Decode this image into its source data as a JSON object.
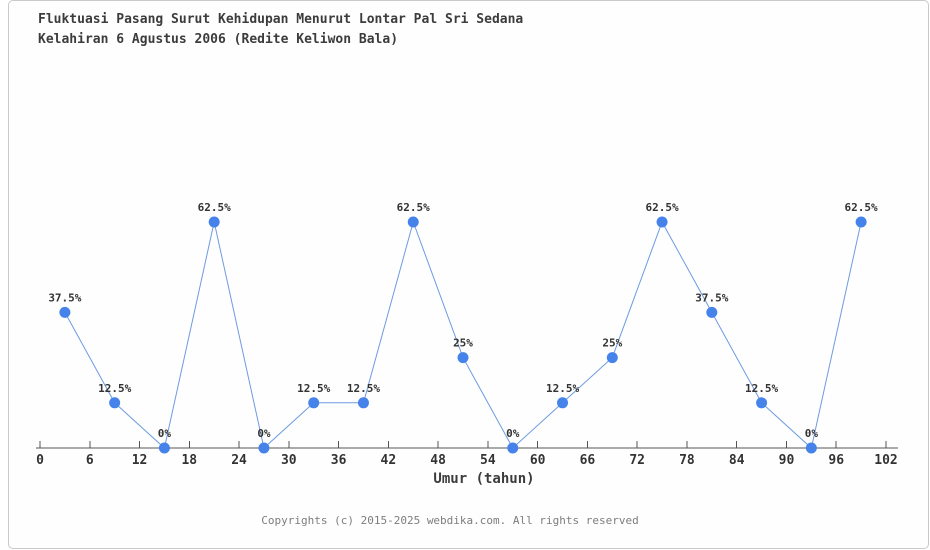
{
  "page": {
    "background": "#ffffff",
    "frame_border_color": "#c9c9c9"
  },
  "chart_data": {
    "type": "line",
    "title": "Fluktuasi Pasang Surut Kehidupan Menurut Lontar Pal Sri Sedana",
    "subtitle": "Kelahiran 6 Agustus 2006 (Redite Keliwon Bala)",
    "xlabel": "Umur (tahun)",
    "ylabel": "",
    "x": [
      3,
      9,
      15,
      21,
      27,
      33,
      39,
      45,
      51,
      57,
      63,
      69,
      75,
      81,
      87,
      93,
      99
    ],
    "values": [
      37.5,
      12.5,
      0,
      62.5,
      0,
      12.5,
      12.5,
      62.5,
      25,
      0,
      12.5,
      25,
      62.5,
      37.5,
      12.5,
      0,
      62.5
    ],
    "point_labels": [
      "37.5%",
      "12.5%",
      "0%",
      "62.5%",
      "0%",
      "12.5%",
      "12.5%",
      "62.5%",
      "25%",
      "0%",
      "12.5%",
      "25%",
      "62.5%",
      "37.5%",
      "12.5%",
      "0%",
      "62.5%"
    ],
    "x_ticks": [
      0,
      6,
      12,
      18,
      24,
      30,
      36,
      42,
      48,
      54,
      60,
      66,
      72,
      78,
      84,
      90,
      96,
      102
    ],
    "xlim": [
      0,
      102
    ],
    "ylim": [
      0,
      100
    ],
    "grid": false,
    "legend": "none",
    "line_color": "#6d9be0",
    "marker_color": "#4583ea",
    "axis_color": "#555555",
    "label_color": "#333333"
  },
  "footer": {
    "copyright": "Copyrights (c) 2015-2025 webdika.com. All rights reserved"
  }
}
